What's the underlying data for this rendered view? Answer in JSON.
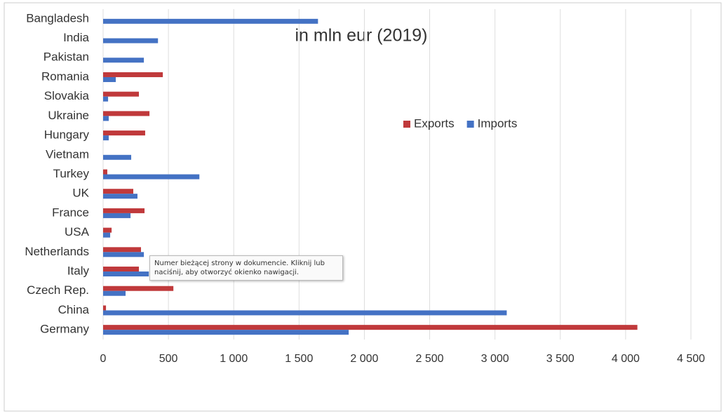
{
  "chart_data": {
    "type": "bar",
    "orientation": "horizontal",
    "title": "in mln eur (2019)",
    "categories": [
      "Bangladesh",
      "India",
      "Pakistan",
      "Romania",
      "Slovakia",
      "Ukraine",
      "Hungary",
      "Vietnam",
      "Turkey",
      "UK",
      "France",
      "USA",
      "Netherlands",
      "Italy",
      "Czech Rep.",
      "China",
      "Germany"
    ],
    "series": [
      {
        "name": "Exports",
        "color": "#c0393b",
        "values": [
          0,
          0,
          0,
          457,
          274,
          355,
          322,
          0,
          32,
          231,
          317,
          65,
          290,
          274,
          538,
          22,
          4090
        ]
      },
      {
        "name": "Imports",
        "color": "#4472c4",
        "values": [
          1645,
          420,
          312,
          97,
          38,
          43,
          43,
          215,
          737,
          263,
          210,
          54,
          312,
          350,
          172,
          3090,
          1880
        ]
      }
    ],
    "xlim": [
      0,
      4500
    ],
    "xticks": [
      0,
      500,
      {
        "value": 1000,
        "label": "1 000"
      },
      {
        "value": 1500,
        "label": "1 500"
      },
      {
        "value": 2000,
        "label": "2 000"
      },
      {
        "value": 2500,
        "label": "2 500"
      },
      {
        "value": 3000,
        "label": "3 000"
      },
      {
        "value": 3500,
        "label": "3 500"
      },
      {
        "value": 4000,
        "label": "4 000"
      },
      {
        "value": 4500,
        "label": "4 500"
      }
    ],
    "grid": true,
    "legend": "right"
  },
  "tooltip": "Numer bieżącej strony w dokumencie. Kliknij lub naciśnij, aby otworzyć okienko nawigacji."
}
